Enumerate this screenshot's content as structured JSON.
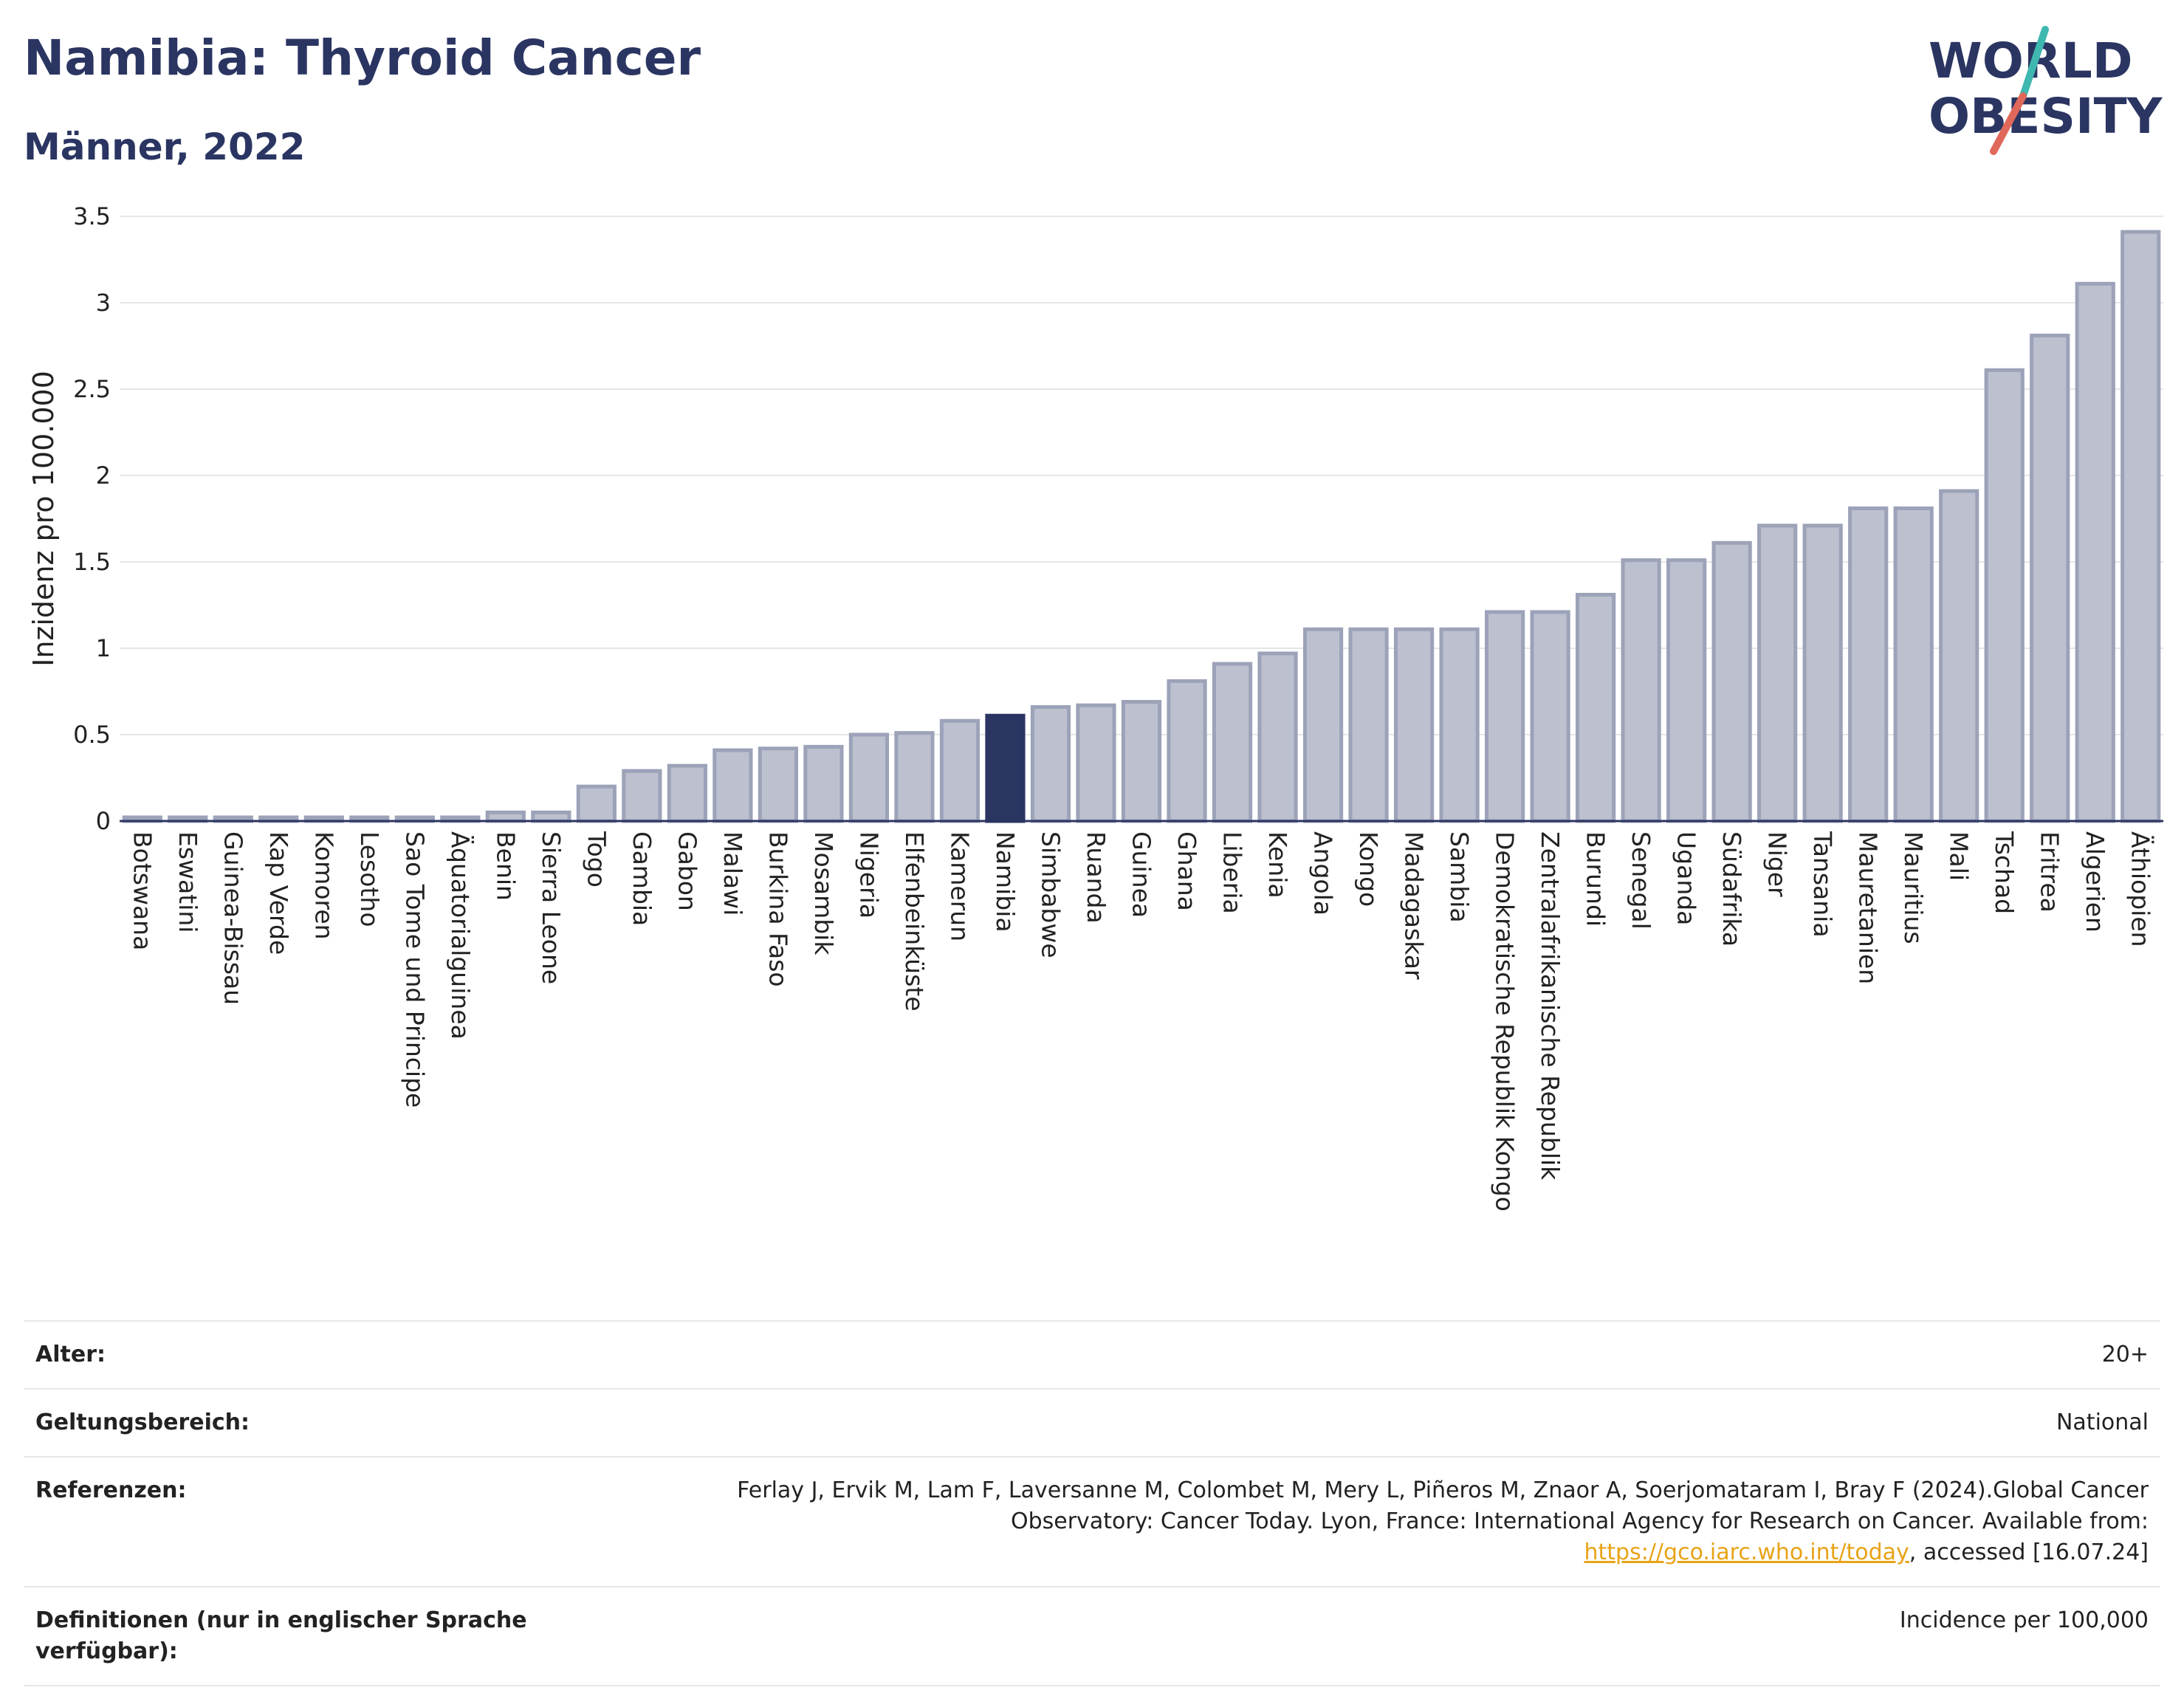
{
  "header": {
    "title": "Namibia: Thyroid Cancer",
    "subtitle": "Männer, 2022"
  },
  "logo": {
    "line1": "WORLD",
    "line2": "OBESITY",
    "colors": {
      "text": "#2b3562",
      "slash_teal": "#3fb8b0",
      "slash_red": "#e0685a"
    }
  },
  "colors": {
    "bar_default": "#bcc0cf",
    "bar_border": "#9ca2b8",
    "bar_highlight": "#2b3562",
    "grid": "#e6e6e6",
    "axis": "#2b3562"
  },
  "chart_data": {
    "type": "bar",
    "ylabel": "Inzidenz pro 100.000",
    "xlabel": "",
    "ylim": [
      0,
      3.5
    ],
    "yticks": [
      "0",
      "0.5",
      "1",
      "1.5",
      "2",
      "2.5",
      "3",
      "3.5"
    ],
    "ytick_values": [
      0,
      0.5,
      1,
      1.5,
      2,
      2.5,
      3,
      3.5
    ],
    "grid": true,
    "highlight": "Namibia",
    "categories": [
      "Botswana",
      "Eswatini",
      "Guinea-Bissau",
      "Kap Verde",
      "Komoren",
      "Lesotho",
      "Sao Tome und Principe",
      "Äquatorialguinea",
      "Benin",
      "Sierra Leone",
      "Togo",
      "Gambia",
      "Gabon",
      "Malawi",
      "Burkina Faso",
      "Mosambik",
      "Nigeria",
      "Elfenbeinküste",
      "Kamerun",
      "Namibia",
      "Simbabwe",
      "Ruanda",
      "Guinea",
      "Ghana",
      "Liberia",
      "Kenia",
      "Angola",
      "Kongo",
      "Madagaskar",
      "Sambia",
      "Demokratische Republik Kongo",
      "Zentralafrikanische Republik",
      "Burundi",
      "Senegal",
      "Uganda",
      "Südafrika",
      "Niger",
      "Tansania",
      "Mauretanien",
      "Mauritius",
      "Mali",
      "Tschad",
      "Eritrea",
      "Algerien",
      "Äthiopien"
    ],
    "values": [
      0,
      0,
      0,
      0,
      0,
      0,
      0,
      0,
      0.05,
      0.05,
      0.2,
      0.29,
      0.32,
      0.41,
      0.42,
      0.43,
      0.5,
      0.51,
      0.58,
      0.61,
      0.66,
      0.67,
      0.69,
      0.81,
      0.91,
      0.97,
      1.11,
      1.11,
      1.11,
      1.11,
      1.21,
      1.21,
      1.31,
      1.51,
      1.51,
      1.61,
      1.71,
      1.71,
      1.81,
      1.81,
      1.91,
      2.61,
      2.81,
      3.11,
      3.41
    ]
  },
  "meta": [
    {
      "label": "Alter:",
      "value": "20+"
    },
    {
      "label": "Geltungsbereich:",
      "value": "National"
    },
    {
      "label": "Referenzen:",
      "value_pre": "Ferlay J, Ervik M, Lam F, Laversanne M, Colombet M, Mery L, Piñeros M, Znaor A, Soerjomataram I, Bray F (2024).Global Cancer Observatory: Cancer Today. Lyon, France: International Agency for Research on Cancer. Available from: ",
      "link": "https://gco.iarc.who.int/today",
      "value_post": ", accessed [16.07.24]"
    },
    {
      "label": "Definitionen (nur in englischer Sprache verfügbar):",
      "value": "Incidence per 100,000"
    }
  ]
}
